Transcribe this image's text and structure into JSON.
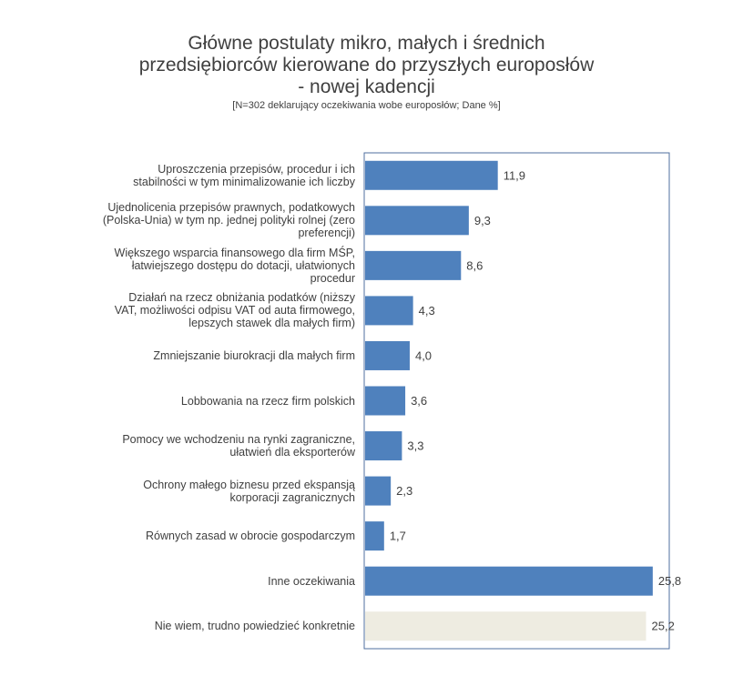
{
  "chart_data": {
    "type": "bar",
    "orientation": "horizontal",
    "title_lines": [
      "Główne postulaty mikro, małych i średnich",
      "przedsiębiorców kierowane do przyszłych europosłów",
      "- nowej kadencji"
    ],
    "subtitle": "[N=302 deklarujący oczekiwania wobe europosłów; Dane %]",
    "categories": [
      [
        "Uproszczenia przepisów, procedur i ich",
        "stabilności w tym minimalizowanie ich liczby"
      ],
      [
        "Ujednolicenia przepisów prawnych, podatkowych",
        "(Polska-Unia) w tym np. jednej polityki rolnej (zero",
        "preferencji)"
      ],
      [
        "Większego wsparcia finansowego dla firm MŚP,",
        "łatwiejszego dostępu do dotacji, ułatwionych",
        "procedur"
      ],
      [
        "Działań na rzecz obniżania podatków (niższy",
        "VAT, możliwości odpisu VAT od auta firmowego,",
        "lepszych stawek dla małych firm)"
      ],
      [
        "Zmniejszanie biurokracji dla małych firm"
      ],
      [
        "Lobbowania na rzecz firm polskich"
      ],
      [
        "Pomocy we wchodzeniu na rynki zagraniczne,",
        "ułatwień dla eksporterów"
      ],
      [
        "Ochrony małego biznesu przed ekspansją",
        "korporacji zagranicznych"
      ],
      [
        "Równych zasad w obrocie gospodarczym"
      ],
      [
        "Inne oczekiwania"
      ],
      [
        "Nie wiem, trudno powiedzieć konkretnie"
      ]
    ],
    "values": [
      11.9,
      9.3,
      8.6,
      4.3,
      4.0,
      3.6,
      3.3,
      2.3,
      1.7,
      25.8,
      25.2
    ],
    "value_labels": [
      "11,9",
      "9,3",
      "8,6",
      "4,3",
      "4,0",
      "3,6",
      "3,3",
      "2,3",
      "1,7",
      "25,8",
      "25,2"
    ],
    "xlim": [
      0,
      27.2
    ],
    "colors": {
      "bar": "#4f81bd",
      "bar_last": "#eeece1",
      "frame": "#4f6f9f",
      "text": "#404040"
    }
  }
}
